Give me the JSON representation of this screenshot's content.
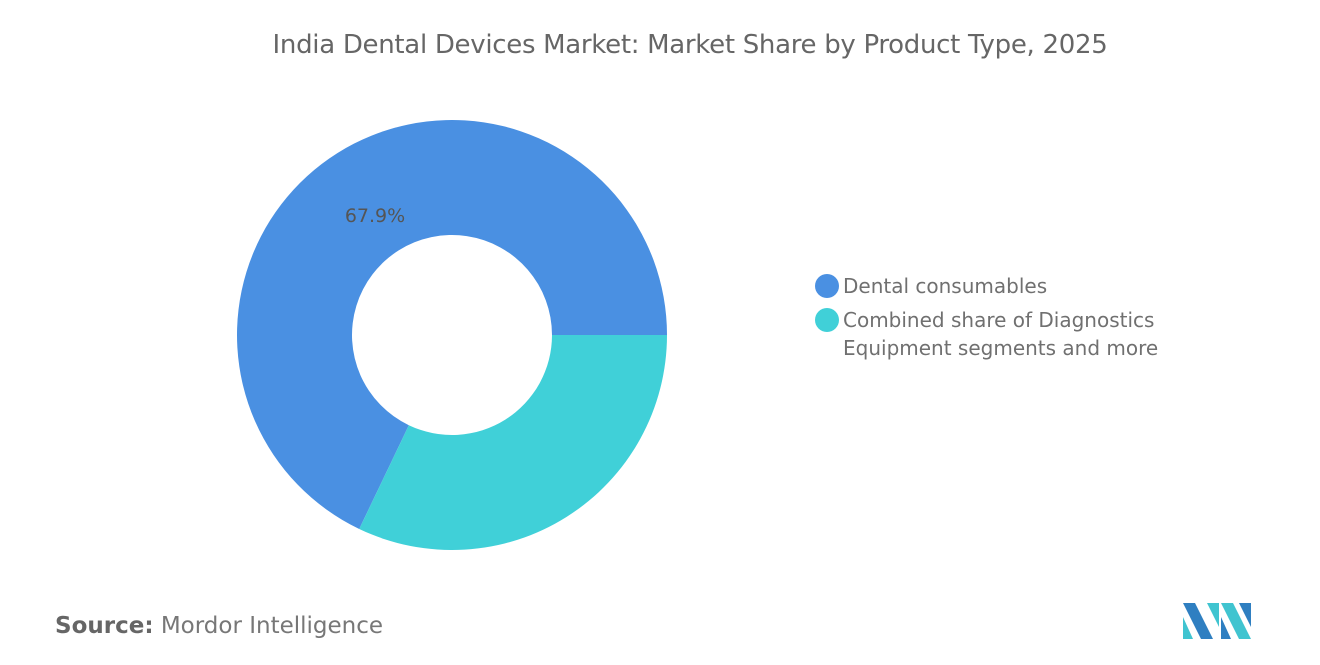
{
  "chart_data": {
    "type": "pie",
    "variant": "donut",
    "title": "India Dental Devices Market: Market Share by Product Type, 2025",
    "slices": [
      {
        "name": "Dental consumables",
        "value": 67.9,
        "label": "67.9%",
        "color": "#4a90e2"
      },
      {
        "name": "Combined share of Diagnostics Equipment segments and more",
        "value": 32.1,
        "label": "",
        "color": "#40d0d8"
      }
    ],
    "legend_placement": "right"
  },
  "source": {
    "label": "Source:",
    "value": "Mordor Intelligence"
  },
  "logo": {
    "name": "mordor-intelligence-logo",
    "text": "MI"
  }
}
